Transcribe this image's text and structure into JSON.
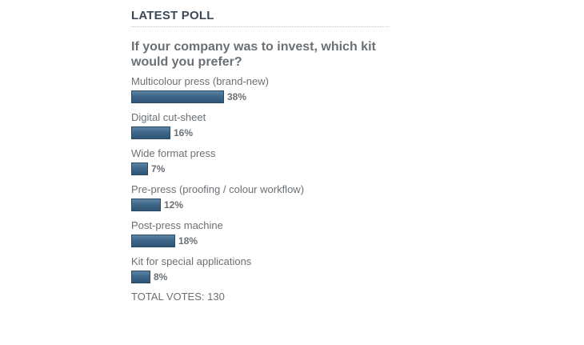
{
  "poll": {
    "heading": "LATEST POLL",
    "question": "If your company was to invest, which kit would you prefer?",
    "options": [
      {
        "label": "Multicolour press (brand-new)",
        "percent": 38,
        "percent_text": "38%"
      },
      {
        "label": "Digital cut-sheet",
        "percent": 16,
        "percent_text": "16%"
      },
      {
        "label": "Wide format press",
        "percent": 7,
        "percent_text": "7%"
      },
      {
        "label": "Pre-press (proofing / colour workflow)",
        "percent": 12,
        "percent_text": "12%"
      },
      {
        "label": "Post-press machine",
        "percent": 18,
        "percent_text": "18%"
      },
      {
        "label": "Kit for special applications",
        "percent": 8,
        "percent_text": "8%"
      }
    ],
    "total_votes_text": "TOTAL VOTES: 130",
    "bar_color": "#3e6688"
  }
}
